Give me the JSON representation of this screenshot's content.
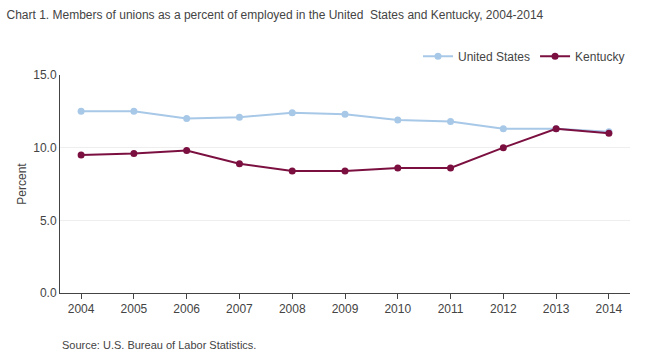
{
  "chart_data": {
    "type": "line",
    "title": "Chart 1. Members of unions as a percent of employed in the United  States and Kentucky, 2004-2014",
    "ylabel": "Percent",
    "annotations": [
      "Source: U.S. Bureau of Labor Statistics."
    ],
    "x": [
      2004,
      2005,
      2006,
      2007,
      2008,
      2009,
      2010,
      2011,
      2012,
      2013,
      2014
    ],
    "series": [
      {
        "name": "United States",
        "color": "#a8c8e8",
        "values": [
          12.5,
          12.5,
          12.0,
          12.1,
          12.4,
          12.3,
          11.9,
          11.8,
          11.3,
          11.3,
          11.1
        ]
      },
      {
        "name": "Kentucky",
        "color": "#7b1040",
        "values": [
          9.5,
          9.6,
          9.8,
          8.9,
          8.4,
          8.4,
          8.6,
          8.6,
          10.0,
          11.3,
          11.0
        ]
      }
    ],
    "marker": "circle",
    "xlim": [
      2003.6,
      2014.4
    ],
    "xticks": [
      2004,
      2005,
      2006,
      2007,
      2008,
      2009,
      2010,
      2011,
      2012,
      2013,
      2014
    ],
    "ylim": [
      0,
      15.0
    ],
    "yticks": [
      {
        "value": 0.0,
        "label": "0.0"
      },
      {
        "value": 5.0,
        "label": "5.0"
      },
      {
        "value": 10.0,
        "label": "10.0"
      },
      {
        "value": 15.0,
        "label": "15.0"
      }
    ],
    "grid": "y",
    "legend": "upper right"
  }
}
